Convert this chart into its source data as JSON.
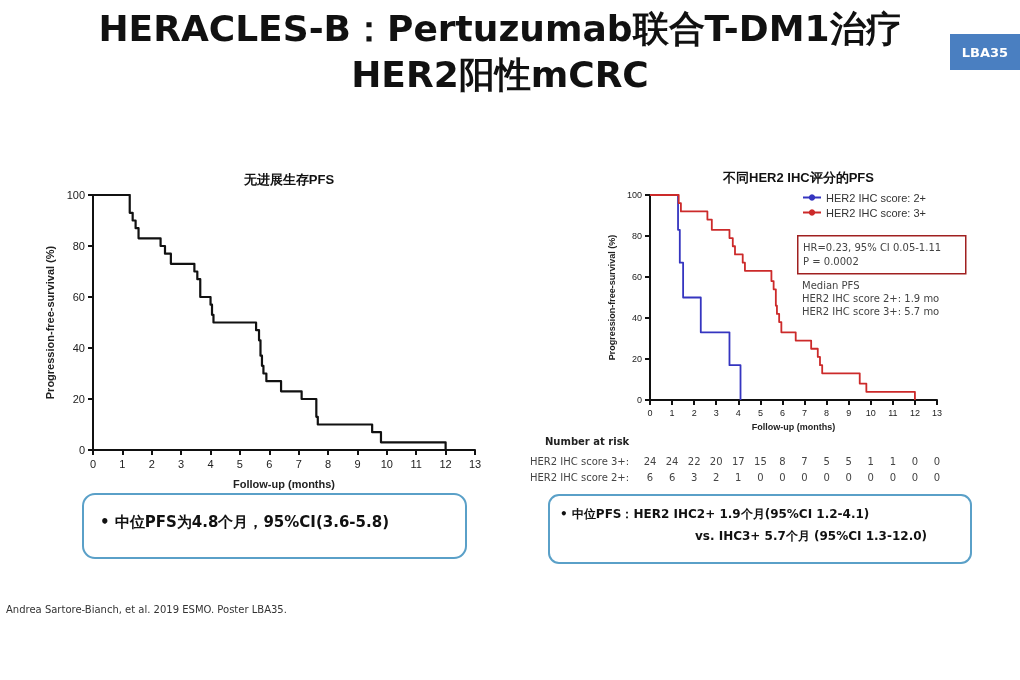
{
  "chart_data": [
    {
      "type": "other",
      "title": "HERACLES-B：Pertuzumab联合T-DM1治疗\nHER2阳性mCRC",
      "annotations": [
        "LBA35",
        "Andrea Sartore-Bianch, et al. 2019 ESMO. Poster LBA35."
      ]
    },
    {
      "type": "step",
      "title": "无进展生存PFS",
      "xlabel": "Follow-up (months)",
      "ylabel": "Progression-free-survival (%)",
      "xlim": [
        0,
        13
      ],
      "xticks": [
        0,
        1,
        2,
        3,
        4,
        5,
        6,
        7,
        8,
        9,
        10,
        11,
        12,
        13
      ],
      "ylim": [
        0,
        100
      ],
      "yticks": [
        0,
        20,
        40,
        60,
        80,
        100
      ],
      "grid": false,
      "legend": false,
      "marker": "none",
      "line_style": "solid",
      "series": [
        {
          "color": "#111111",
          "x": [
            0,
            1.25,
            1.35,
            1.45,
            1.55,
            2.3,
            2.45,
            2.65,
            3.45,
            3.55,
            3.65,
            4.0,
            4.05,
            4.1,
            5.55,
            5.65,
            5.7,
            5.75,
            5.8,
            5.9,
            6.4,
            7.1,
            7.6,
            7.65,
            9.5,
            9.8,
            12
          ],
          "values": [
            100,
            93,
            90,
            87,
            83,
            80,
            77,
            73,
            70,
            67,
            60,
            57,
            53,
            50,
            47,
            43,
            37,
            33,
            30,
            27,
            23,
            20,
            13,
            10,
            7,
            3,
            0
          ]
        }
      ],
      "annotations": [
        "• 中位PFS为4.8个月，95%CI(3.6-5.8)"
      ]
    },
    {
      "type": "step",
      "title": "不同HER2 IHC评分的PFS",
      "xlabel": "Follow-up (months)",
      "ylabel": "Progression-free-survival (%)",
      "xlim": [
        0,
        13
      ],
      "xticks": [
        0,
        1,
        2,
        3,
        4,
        5,
        6,
        7,
        8,
        9,
        10,
        11,
        12,
        13
      ],
      "ylim": [
        0,
        100
      ],
      "yticks": [
        0,
        20,
        40,
        60,
        80,
        100
      ],
      "grid": false,
      "legend": "top right",
      "marker": "none",
      "line_style": "solid",
      "series": [
        {
          "name": "HER2 IHC score: 2+",
          "color": "#3535c0",
          "x": [
            0,
            1.27,
            1.35,
            1.5,
            2.3,
            3.6,
            4.1
          ],
          "values": [
            100,
            83,
            67,
            50,
            33,
            17,
            0
          ]
        },
        {
          "name": "HER2 IHC score: 3+",
          "color": "#cc2a2a",
          "x": [
            0,
            1.3,
            1.4,
            2.6,
            2.8,
            3.6,
            3.75,
            3.85,
            4.2,
            4.3,
            5.5,
            5.6,
            5.7,
            5.75,
            5.85,
            5.95,
            6.6,
            7.3,
            7.6,
            7.7,
            7.8,
            9.5,
            9.8,
            12
          ],
          "values": [
            100,
            96,
            92,
            88,
            83,
            79,
            75,
            71,
            67,
            63,
            58,
            54,
            46,
            42,
            38,
            33,
            29,
            25,
            21,
            17,
            13,
            8,
            4,
            0
          ]
        }
      ],
      "annotations": [
        "HR=0.23, 95% CI 0.05-1.11\nP = 0.0002",
        "Median PFS\nHER2 IHC score 2+: 1.9 mo\nHER2 IHC score 3+: 5.7 mo",
        "Number at risk",
        "HER2 IHC score 3+: 24 24 22 20 17 15 8 7 5 5 1 1 0 0",
        "HER2 IHC score 2+: 6 6 3 2 1 0 0 0 0 0 0 0 0 0",
        "• 中位PFS：HER2 IHC2+ 1.9个月(95%CI 1.2-4.1)\nvs. IHC3+ 5.7个月 (95%CI 1.3-12.0)"
      ]
    }
  ]
}
